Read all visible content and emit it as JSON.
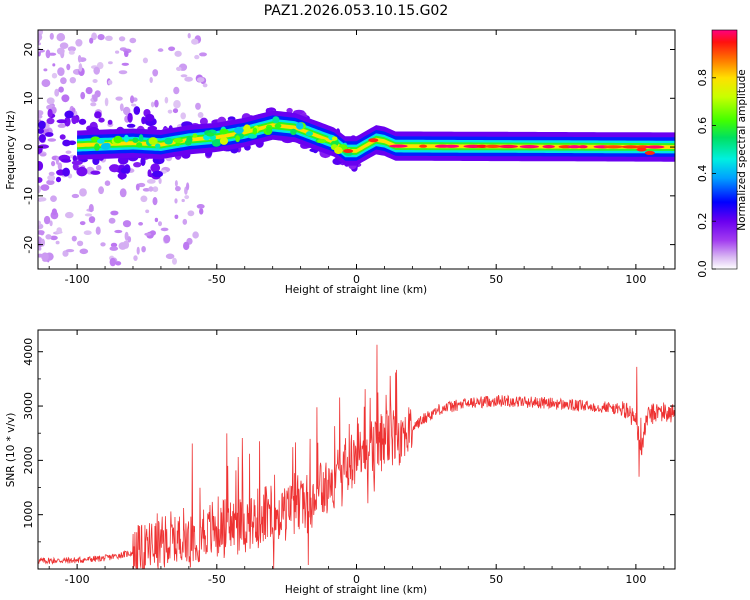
{
  "figure_title": "PAZ1.2026.053.10.15.G02",
  "chart_data": [
    {
      "type": "heatmap",
      "name": "spectrogram",
      "xlabel": "Height of straight line (km)",
      "ylabel": "Frequency (Hz)",
      "xlim": [
        -114,
        114
      ],
      "ylim": [
        -25,
        24
      ],
      "xticks": [
        -100,
        -50,
        0,
        50,
        100
      ],
      "yticks": [
        -20,
        -10,
        0,
        10,
        20
      ],
      "ridge": [
        {
          "x": -114,
          "f": 0
        },
        {
          "x": -95,
          "f": 0.5
        },
        {
          "x": -80,
          "f": 0.8
        },
        {
          "x": -70,
          "f": 0.5
        },
        {
          "x": -60,
          "f": 1.5
        },
        {
          "x": -50,
          "f": 2.0
        },
        {
          "x": -40,
          "f": 3.0
        },
        {
          "x": -30,
          "f": 4.5
        },
        {
          "x": -22,
          "f": 4.0
        },
        {
          "x": -15,
          "f": 2.5
        },
        {
          "x": -8,
          "f": 1.0
        },
        {
          "x": -4,
          "f": -0.8
        },
        {
          "x": 0,
          "f": -0.8
        },
        {
          "x": 3,
          "f": 0.2
        },
        {
          "x": 7,
          "f": 1.5
        },
        {
          "x": 10,
          "f": 1.2
        },
        {
          "x": 14,
          "f": 0.2
        },
        {
          "x": 114,
          "f": 0.0
        }
      ],
      "colorbar": {
        "label": "Normalized spectral amplitude",
        "ticks": [
          "0.0",
          "0.2",
          "0.4",
          "0.6",
          "0.8"
        ],
        "range": [
          0,
          1
        ]
      }
    },
    {
      "type": "line",
      "name": "snr",
      "xlabel": "Height of straight line (km)",
      "ylabel": "SNR (10 * v/v)",
      "xlim": [
        -114,
        114
      ],
      "ylim": [
        0,
        4400
      ],
      "xticks": [
        -100,
        -50,
        0,
        50,
        100
      ],
      "yticks": [
        1000,
        2000,
        3000,
        4000
      ],
      "color": "#ee3333",
      "envelope": [
        {
          "x": -114,
          "y": 150
        },
        {
          "x": -100,
          "y": 160
        },
        {
          "x": -90,
          "y": 200
        },
        {
          "x": -80,
          "y": 300
        },
        {
          "x": -70,
          "y": 450
        },
        {
          "x": -60,
          "y": 600
        },
        {
          "x": -50,
          "y": 750
        },
        {
          "x": -40,
          "y": 850
        },
        {
          "x": -30,
          "y": 1000
        },
        {
          "x": -20,
          "y": 1200
        },
        {
          "x": -10,
          "y": 1500
        },
        {
          "x": -5,
          "y": 1800
        },
        {
          "x": 0,
          "y": 2100
        },
        {
          "x": 5,
          "y": 2250
        },
        {
          "x": 10,
          "y": 2350
        },
        {
          "x": 15,
          "y": 2450
        },
        {
          "x": 20,
          "y": 2600
        },
        {
          "x": 25,
          "y": 2800
        },
        {
          "x": 30,
          "y": 2950
        },
        {
          "x": 40,
          "y": 3050
        },
        {
          "x": 50,
          "y": 3100
        },
        {
          "x": 60,
          "y": 3080
        },
        {
          "x": 70,
          "y": 3050
        },
        {
          "x": 80,
          "y": 3000
        },
        {
          "x": 90,
          "y": 2980
        },
        {
          "x": 97,
          "y": 2900
        },
        {
          "x": 100,
          "y": 2700
        },
        {
          "x": 102,
          "y": 2200
        },
        {
          "x": 104,
          "y": 2800
        },
        {
          "x": 108,
          "y": 2900
        },
        {
          "x": 114,
          "y": 2850
        }
      ]
    }
  ]
}
